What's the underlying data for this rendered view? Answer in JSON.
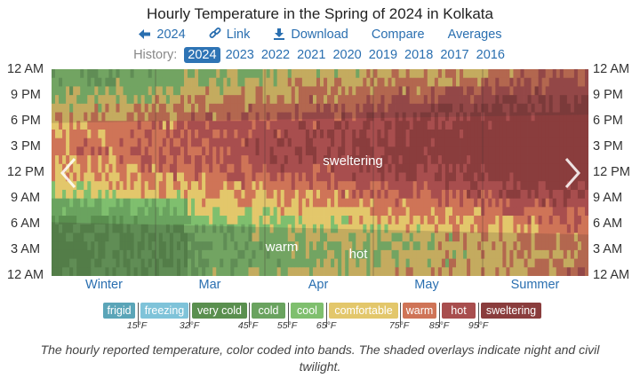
{
  "header": {
    "title": "Hourly Temperature in the Spring of 2024 in Kolkata"
  },
  "toolbar": {
    "back_label": "2024",
    "link_label": "Link",
    "download_label": "Download",
    "compare_label": "Compare",
    "averages_label": "Averages"
  },
  "history": {
    "label": "History:",
    "years": [
      "2024",
      "2023",
      "2022",
      "2021",
      "2020",
      "2019",
      "2018",
      "2017",
      "2016"
    ],
    "active": "2024"
  },
  "colors": {
    "frigid": "#5ba5b8",
    "freezing": "#7fc3d9",
    "very_cold": "#5a8f4f",
    "cold": "#6aa35f",
    "cool": "#7fbf6e",
    "comfortable": "#e3c76b",
    "warm": "#cf7457",
    "hot": "#a84e4e",
    "sweltering": "#8a3d3d"
  },
  "chart_data": {
    "type": "heatmap",
    "title": "Hourly Temperature in the Spring of 2024 in Kolkata",
    "y_axis_labels": [
      "12 AM",
      "9 PM",
      "6 PM",
      "3 PM",
      "12 PM",
      "9 AM",
      "6 AM",
      "3 AM",
      "12 AM"
    ],
    "x_axis_labels": [
      "Winter",
      "Mar",
      "Apr",
      "May",
      "Summer"
    ],
    "bands": [
      {
        "name": "frigid",
        "max_f": 15
      },
      {
        "name": "freezing",
        "max_f": 32
      },
      {
        "name": "very cold",
        "max_f": 45
      },
      {
        "name": "cold",
        "max_f": 55
      },
      {
        "name": "cool",
        "max_f": 65
      },
      {
        "name": "comfortable",
        "max_f": 75
      },
      {
        "name": "warm",
        "max_f": 85
      },
      {
        "name": "hot",
        "max_f": 95
      },
      {
        "name": "sweltering",
        "max_f": null
      }
    ],
    "legend_ticks": [
      "15°F",
      "32°F",
      "45°F",
      "55°F",
      "65°F",
      "75°F",
      "85°F",
      "95°F"
    ],
    "annotations": [
      "sweltering",
      "warm",
      "hot"
    ],
    "caption": "The hourly reported temperature, color coded into bands. The shaded overlays indicate night and civil twilight."
  }
}
